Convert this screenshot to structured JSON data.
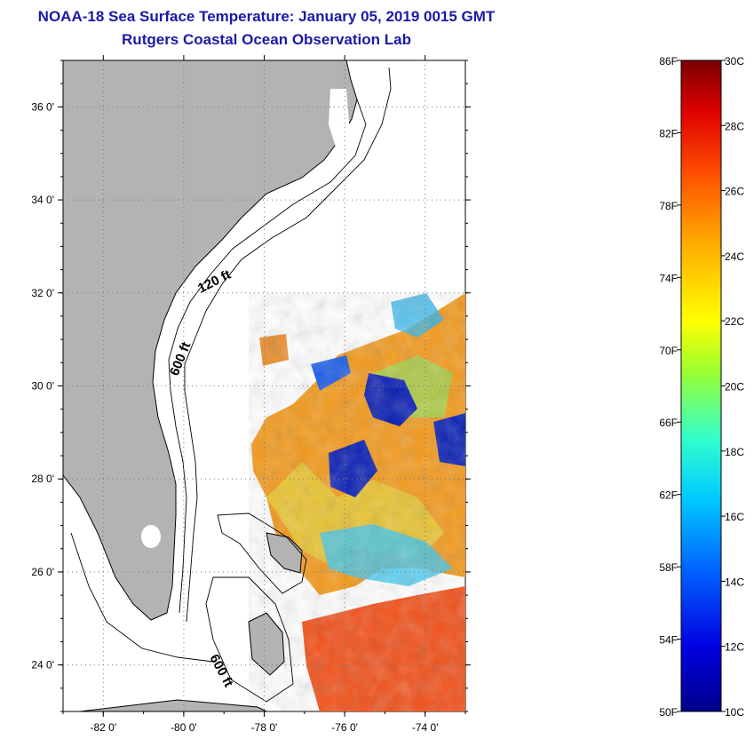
{
  "header": {
    "title": "NOAA-18 Sea Surface Temperature:  January 05, 2019 0015 GMT",
    "subtitle": "Rutgers Coastal Ocean Observation Lab"
  },
  "map": {
    "lon_range": [
      -83,
      -73
    ],
    "lat_range": [
      23,
      37
    ],
    "lon_ticks": [
      {
        "value": -82,
        "label": "-82 0'"
      },
      {
        "value": -80,
        "label": "-80 0'"
      },
      {
        "value": -78,
        "label": "-78 0'"
      },
      {
        "value": -76,
        "label": "-76 0'"
      },
      {
        "value": -74,
        "label": "-74 0'"
      }
    ],
    "lat_ticks": [
      {
        "value": 36,
        "label": "36 0'"
      },
      {
        "value": 34,
        "label": "34 0'"
      },
      {
        "value": 32,
        "label": "32 0'"
      },
      {
        "value": 30,
        "label": "30 0'"
      },
      {
        "value": 28,
        "label": "28 0'"
      },
      {
        "value": 26,
        "label": "26 0'"
      },
      {
        "value": 24,
        "label": "24 0'"
      }
    ],
    "grid": "dotted",
    "contour_labels": [
      "120 ft",
      "600 ft",
      "600 ft"
    ],
    "colors": {
      "land": "#b3b3b3",
      "coast": "#000000",
      "grid": "#777777"
    }
  },
  "colorbar": {
    "fahrenheit_labels": [
      "86F",
      "82F",
      "78F",
      "74F",
      "70F",
      "66F",
      "62F",
      "58F",
      "54F",
      "50F"
    ],
    "celsius_labels": [
      "30C",
      "28C",
      "26C",
      "24C",
      "22C",
      "20C",
      "18C",
      "16C",
      "14C",
      "12C",
      "10C"
    ],
    "range_f": [
      50,
      86
    ],
    "range_c": [
      10,
      30
    ],
    "colors": [
      "#00008c",
      "#0000e0",
      "#0066ff",
      "#00ccff",
      "#33ffcc",
      "#99ff33",
      "#ffff00",
      "#ffaa00",
      "#ff5500",
      "#e00000",
      "#7a0000"
    ]
  }
}
